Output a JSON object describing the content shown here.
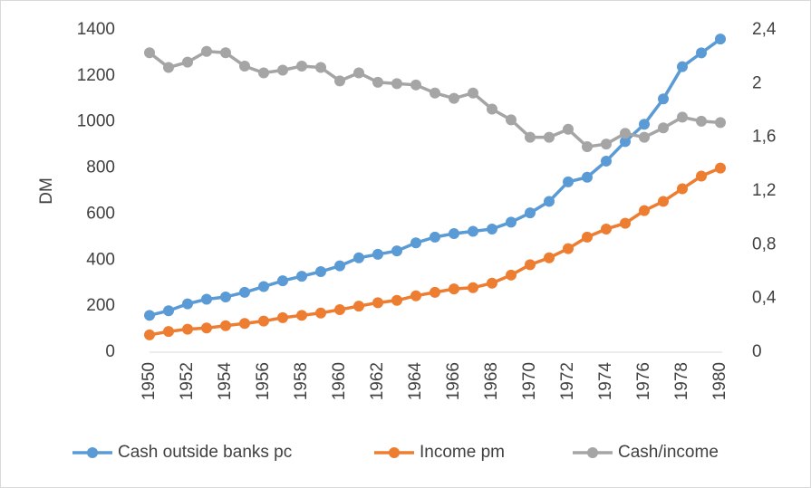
{
  "chart_data": {
    "type": "line",
    "y_label": "DM",
    "x": [
      1950,
      1951,
      1952,
      1953,
      1954,
      1955,
      1956,
      1957,
      1958,
      1959,
      1960,
      1961,
      1962,
      1963,
      1964,
      1965,
      1966,
      1967,
      1968,
      1969,
      1970,
      1971,
      1972,
      1973,
      1974,
      1975,
      1976,
      1977,
      1978,
      1979,
      1980
    ],
    "xlim": [
      1950,
      1980
    ],
    "xticks": [
      1950,
      1952,
      1954,
      1956,
      1958,
      1960,
      1962,
      1964,
      1966,
      1968,
      1970,
      1972,
      1974,
      1976,
      1978,
      1980
    ],
    "ylim": [
      0,
      1400
    ],
    "yticks": [
      0,
      200,
      400,
      600,
      800,
      1000,
      1200,
      1400
    ],
    "y2lim": [
      0,
      2.4
    ],
    "y2ticks": [
      0,
      {
        "value": 0.4,
        "label": "0,4"
      },
      {
        "value": 0.8,
        "label": "0,8"
      },
      {
        "value": 1.2,
        "label": "1,2"
      },
      {
        "value": 1.6,
        "label": "1,6"
      },
      2,
      {
        "value": 2.4,
        "label": "2,4"
      }
    ],
    "grid": false,
    "legend": "bottom",
    "series": [
      {
        "name": "Cash outside banks pc",
        "color": "#5b9bd5",
        "axis": "y",
        "values": [
          160,
          180,
          210,
          230,
          240,
          260,
          285,
          310,
          330,
          350,
          375,
          410,
          425,
          440,
          475,
          500,
          515,
          525,
          535,
          565,
          605,
          655,
          740,
          760,
          830,
          915,
          990,
          1100,
          1240,
          1300,
          1360
        ]
      },
      {
        "name": "Income pm",
        "color": "#ed7d31",
        "axis": "y",
        "values": [
          75,
          90,
          100,
          105,
          115,
          125,
          135,
          150,
          160,
          170,
          185,
          200,
          215,
          225,
          245,
          260,
          275,
          280,
          300,
          335,
          380,
          410,
          450,
          500,
          535,
          560,
          615,
          655,
          710,
          765,
          800
        ]
      },
      {
        "name": "Cash/income",
        "color": "#a5a5a5",
        "axis": "y2",
        "values": [
          2.23,
          2.12,
          2.16,
          2.24,
          2.23,
          2.13,
          2.08,
          2.1,
          2.13,
          2.12,
          2.02,
          2.08,
          2.01,
          2.0,
          1.99,
          1.93,
          1.89,
          1.93,
          1.81,
          1.73,
          1.6,
          1.6,
          1.66,
          1.53,
          1.55,
          1.63,
          1.6,
          1.67,
          1.75,
          1.72,
          1.71
        ]
      }
    ]
  }
}
